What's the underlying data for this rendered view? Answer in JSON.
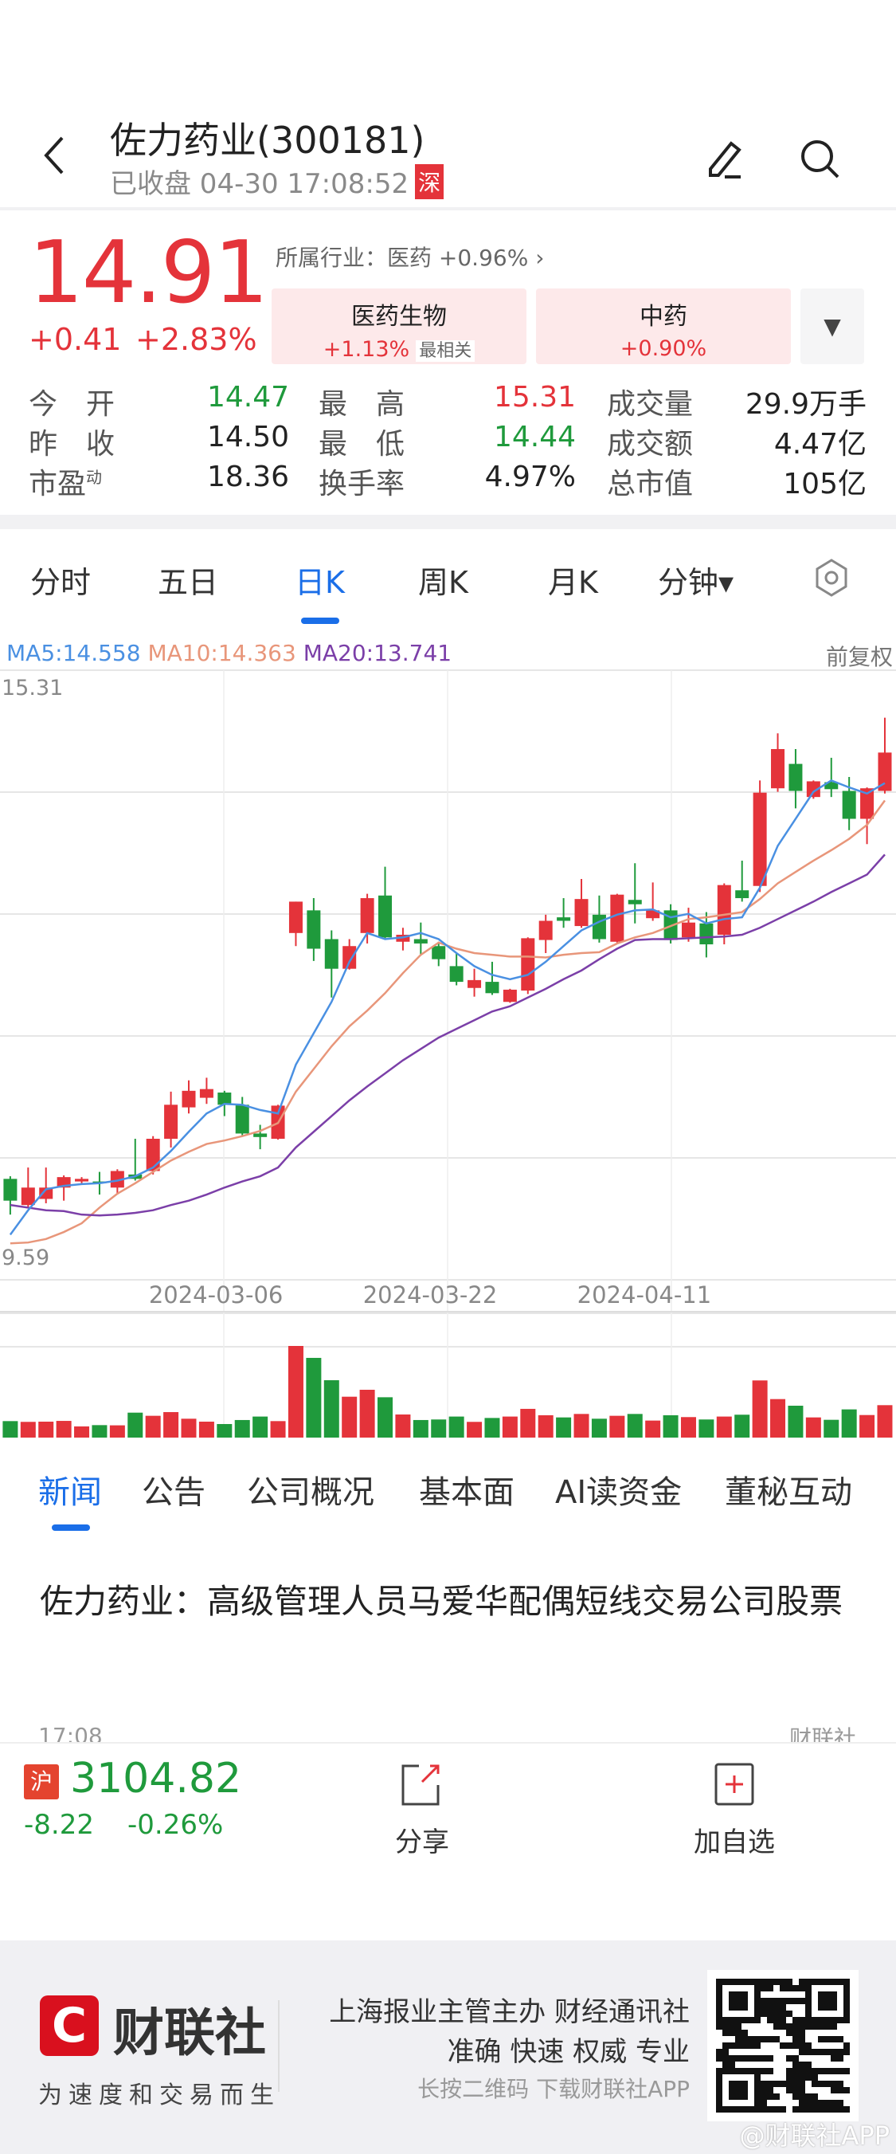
{
  "header": {
    "title": "佐力药业(300181)",
    "status": "已收盘 04-30 17:08:52",
    "exchange_badge": "深"
  },
  "quote": {
    "price": "14.91",
    "change": "+0.41",
    "change_pct": "+2.83%",
    "industry": "所属行业：医药 +0.96%",
    "sectors": [
      {
        "name": "医药生物",
        "pct": "+1.13%",
        "tag": "最相关"
      },
      {
        "name": "中药",
        "pct": "+0.90%"
      }
    ],
    "stats": [
      [
        {
          "label": "今　开",
          "value": "14.47",
          "color": "green"
        },
        {
          "label": "最　高",
          "value": "15.31",
          "color": "red"
        },
        {
          "label": "成交量",
          "value": "29.9万手",
          "color": "dark"
        }
      ],
      [
        {
          "label": "昨　收",
          "value": "14.50",
          "color": "dark"
        },
        {
          "label": "最　低",
          "value": "14.44",
          "color": "green"
        },
        {
          "label": "成交额",
          "value": "4.47亿",
          "color": "dark"
        }
      ],
      [
        {
          "label": "市盈",
          "sup": "动",
          "value": "18.36",
          "color": "dark"
        },
        {
          "label": "换手率",
          "value": "4.97%",
          "color": "dark"
        },
        {
          "label": "总市值",
          "value": "105亿",
          "color": "dark"
        }
      ]
    ]
  },
  "chart_tabs": [
    "分时",
    "五日",
    "日K",
    "周K",
    "月K",
    "分钟▾"
  ],
  "active_chart_tab": "日K",
  "colors": {
    "up": "#e4333a",
    "down": "#1f9a3c",
    "accent": "#1a6ee8",
    "ma5": "#4a90e2",
    "ma10": "#e8967a",
    "ma20": "#7b3fa8"
  },
  "chart_data": {
    "type": "candlestick",
    "adjust_label": "前复权",
    "legend": [
      "MA5:14.558",
      "MA10:14.363",
      "MA20:13.741"
    ],
    "price_max_label": "15.31",
    "price_min_label": "9.59",
    "x_labels": [
      {
        "index": 12,
        "text": "2024-03-06"
      },
      {
        "index": 24,
        "text": "2024-03-22"
      },
      {
        "index": 36,
        "text": "2024-04-11"
      }
    ],
    "ohlc": [
      [
        10.02,
        10.05,
        9.61,
        9.77
      ],
      [
        9.72,
        10.15,
        9.69,
        9.92
      ],
      [
        9.79,
        10.15,
        9.74,
        9.92
      ],
      [
        9.92,
        10.06,
        9.77,
        10.04
      ],
      [
        9.99,
        10.04,
        9.95,
        10.02
      ],
      [
        9.99,
        10.1,
        9.84,
        9.97
      ],
      [
        9.92,
        10.13,
        9.84,
        10.11
      ],
      [
        10.07,
        10.48,
        10.0,
        10.02
      ],
      [
        10.11,
        10.51,
        10.07,
        10.48
      ],
      [
        10.48,
        11.02,
        10.38,
        10.87
      ],
      [
        10.84,
        11.15,
        10.77,
        11.03
      ],
      [
        10.95,
        11.18,
        10.88,
        11.05
      ],
      [
        11.01,
        11.03,
        10.74,
        10.87
      ],
      [
        10.87,
        10.96,
        10.52,
        10.54
      ],
      [
        10.54,
        10.64,
        10.36,
        10.5
      ],
      [
        10.48,
        10.87,
        10.47,
        10.86
      ],
      [
        12.84,
        13.2,
        12.69,
        13.2
      ],
      [
        13.1,
        13.24,
        12.52,
        12.66
      ],
      [
        12.77,
        12.87,
        12.1,
        12.43
      ],
      [
        12.43,
        12.77,
        12.42,
        12.69
      ],
      [
        12.84,
        13.29,
        12.72,
        13.24
      ],
      [
        13.27,
        13.6,
        12.77,
        12.79
      ],
      [
        12.74,
        12.9,
        12.64,
        12.82
      ],
      [
        12.77,
        12.96,
        12.59,
        12.72
      ],
      [
        12.69,
        12.74,
        12.46,
        12.54
      ],
      [
        12.46,
        12.61,
        12.24,
        12.28
      ],
      [
        12.21,
        12.43,
        12.11,
        12.3
      ],
      [
        12.28,
        12.51,
        12.13,
        12.15
      ],
      [
        12.05,
        12.2,
        12.04,
        12.19
      ],
      [
        12.18,
        12.79,
        12.14,
        12.78
      ],
      [
        12.76,
        13.05,
        12.61,
        12.98
      ],
      [
        13.02,
        13.24,
        12.9,
        12.98
      ],
      [
        12.92,
        13.46,
        12.9,
        13.23
      ],
      [
        13.05,
        13.27,
        12.73,
        12.77
      ],
      [
        12.74,
        13.29,
        12.73,
        13.28
      ],
      [
        13.22,
        13.64,
        12.95,
        13.17
      ],
      [
        13.01,
        13.42,
        12.98,
        13.1
      ],
      [
        13.1,
        13.17,
        12.72,
        12.76
      ],
      [
        12.79,
        13.13,
        12.74,
        12.96
      ],
      [
        12.95,
        13.08,
        12.56,
        12.71
      ],
      [
        12.82,
        13.41,
        12.71,
        13.39
      ],
      [
        13.33,
        13.67,
        13.2,
        13.24
      ],
      [
        13.38,
        14.59,
        13.31,
        14.45
      ],
      [
        14.5,
        15.13,
        14.46,
        14.95
      ],
      [
        14.78,
        14.95,
        14.27,
        14.47
      ],
      [
        14.4,
        14.59,
        14.38,
        14.58
      ],
      [
        14.57,
        14.85,
        14.4,
        14.49
      ],
      [
        14.47,
        14.63,
        14.02,
        14.15
      ],
      [
        14.15,
        14.51,
        13.86,
        14.5
      ],
      [
        14.47,
        15.31,
        14.44,
        14.91
      ]
    ],
    "ma5": [
      9.38,
      9.66,
      9.9,
      9.94,
      9.96,
      9.97,
      10.0,
      10.05,
      10.15,
      10.34,
      10.56,
      10.77,
      10.88,
      10.87,
      10.81,
      10.77,
      11.33,
      11.69,
      12.05,
      12.51,
      12.84,
      12.77,
      12.79,
      12.84,
      12.77,
      12.61,
      12.46,
      12.36,
      12.31,
      12.36,
      12.51,
      12.69,
      12.87,
      12.97,
      13.05,
      13.1,
      13.11,
      13.02,
      13.06,
      12.95,
      13.0,
      13.02,
      13.36,
      13.84,
      14.15,
      14.46,
      14.59,
      14.51,
      14.44,
      14.56
    ],
    "ma10": [
      9.28,
      9.29,
      9.33,
      9.41,
      9.51,
      9.69,
      9.85,
      9.97,
      10.1,
      10.23,
      10.33,
      10.42,
      10.46,
      10.51,
      10.57,
      10.66,
      11.02,
      11.28,
      11.54,
      11.77,
      11.95,
      12.15,
      12.38,
      12.59,
      12.73,
      12.66,
      12.61,
      12.59,
      12.57,
      12.57,
      12.56,
      12.59,
      12.61,
      12.62,
      12.72,
      12.79,
      12.84,
      12.92,
      13.0,
      13.02,
      13.05,
      13.08,
      13.23,
      13.41,
      13.54,
      13.67,
      13.79,
      13.92,
      14.08,
      14.36
    ],
    "ma20": [
      9.72,
      9.69,
      9.66,
      9.65,
      9.61,
      9.6,
      9.61,
      9.63,
      9.66,
      9.72,
      9.77,
      9.84,
      9.92,
      9.99,
      10.05,
      10.15,
      10.38,
      10.56,
      10.74,
      10.92,
      11.08,
      11.23,
      11.38,
      11.51,
      11.64,
      11.74,
      11.84,
      11.94,
      12.0,
      12.1,
      12.2,
      12.31,
      12.41,
      12.54,
      12.66,
      12.76,
      12.77,
      12.77,
      12.78,
      12.79,
      12.8,
      12.82,
      12.9,
      13.0,
      13.1,
      13.2,
      13.31,
      13.41,
      13.51,
      13.74
    ],
    "volume_wanshou": [
      15.2,
      14.5,
      14.7,
      15.4,
      10.3,
      11.5,
      11.3,
      23.0,
      20.1,
      23.5,
      17.4,
      14.7,
      12.5,
      16.2,
      19.4,
      15.2,
      84.5,
      73.5,
      52.9,
      37.7,
      44.1,
      37.2,
      21.3,
      16.2,
      16.7,
      19.4,
      14.5,
      18.1,
      19.4,
      26.5,
      20.6,
      18.6,
      21.8,
      17.4,
      20.1,
      21.8,
      15.7,
      20.6,
      18.9,
      16.7,
      19.4,
      21.1,
      52.7,
      35.5,
      29.4,
      18.6,
      16.4,
      26.0,
      20.8,
      29.9
    ]
  },
  "news_tabs": [
    "新闻",
    "公告",
    "公司概况",
    "基本面",
    "AI读资金",
    "董秘互动"
  ],
  "news": {
    "headline": "佐力药业：高级管理人员马爱华配偶短线交易公司股票",
    "time": "17:08",
    "source": "财联社"
  },
  "bottom_bar": {
    "index_badge": "沪",
    "index_value": "3104.82",
    "index_change": "-8.22",
    "index_change_pct": "-0.26%",
    "share_label": "分享",
    "watch_label": "加自选"
  },
  "footer": {
    "brand": "财联社",
    "slogan": "为速度和交易而生",
    "line1": "上海报业主管主办 财经通讯社",
    "line2": "准确 快速 权威 专业",
    "line3": "长按二维码 下载财联社APP",
    "watermark": "@财联社APP"
  }
}
